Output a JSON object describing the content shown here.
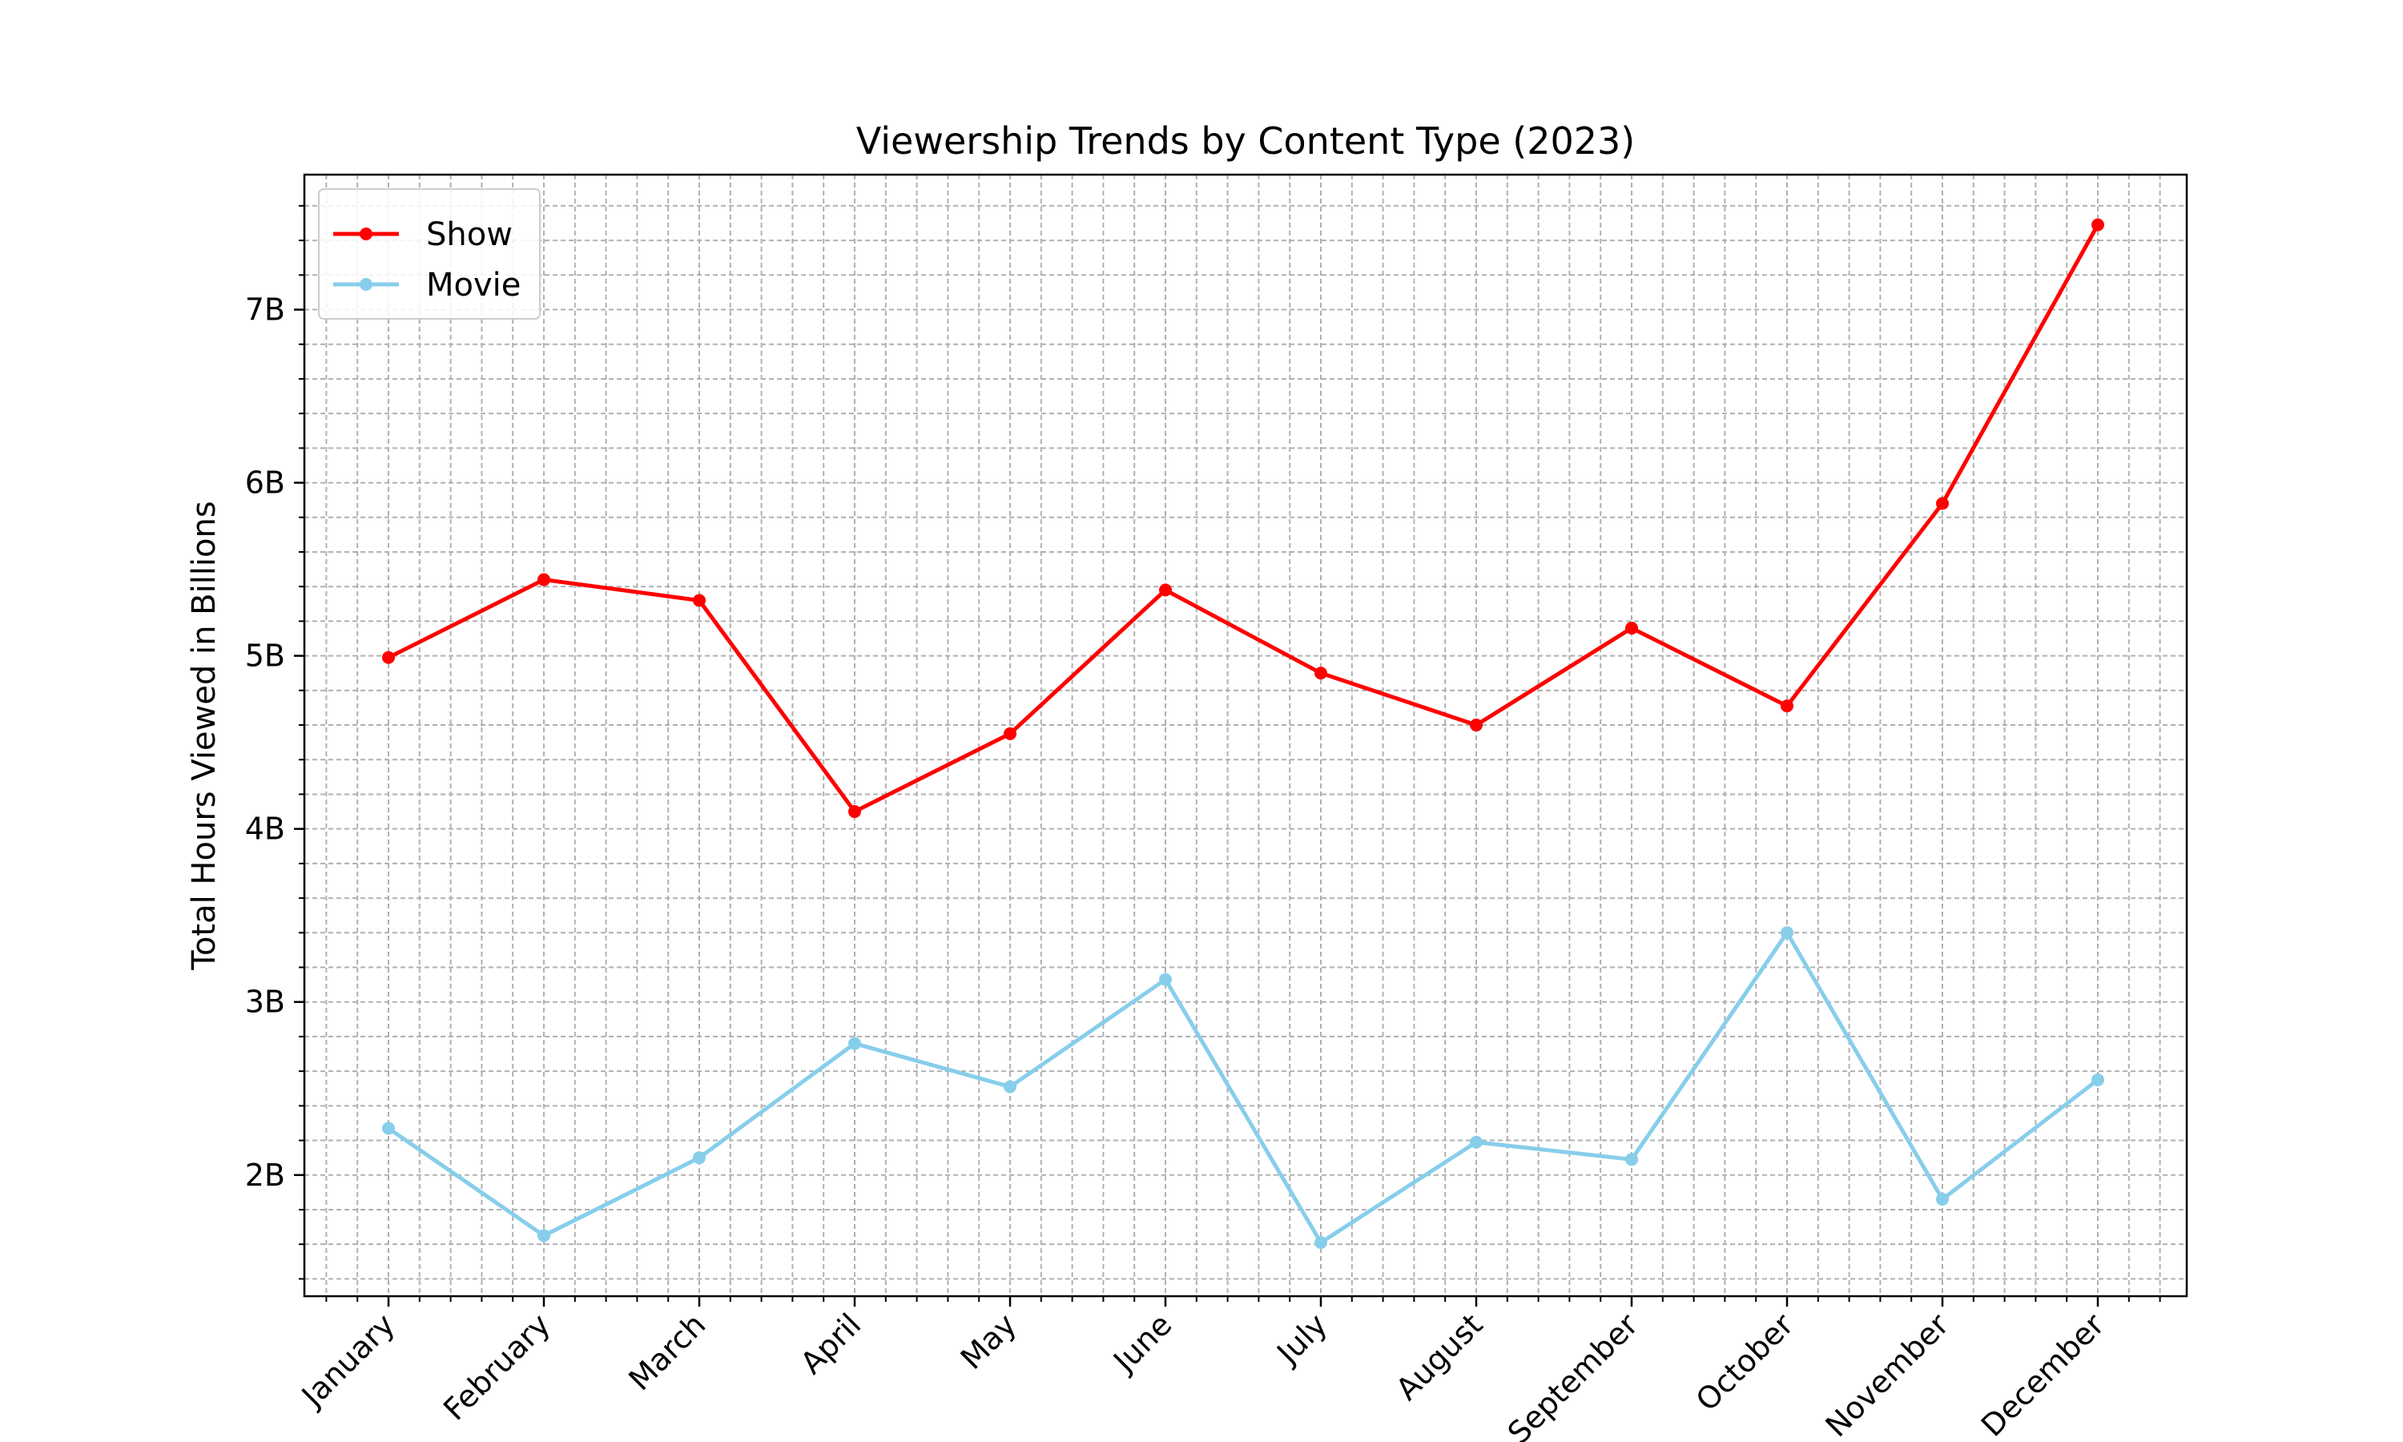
{
  "chart_data": {
    "type": "line",
    "title": "Viewership Trends by Content Type (2023)",
    "xlabel": "",
    "ylabel": "Total Hours Viewed in Billions",
    "categories": [
      "January",
      "February",
      "March",
      "April",
      "May",
      "June",
      "July",
      "August",
      "September",
      "October",
      "November",
      "December"
    ],
    "series": [
      {
        "name": "Show",
        "color": "#ff0000",
        "values": [
          4.99,
          5.44,
          5.32,
          4.1,
          4.55,
          5.38,
          4.9,
          4.6,
          5.16,
          4.71,
          5.88,
          7.49
        ]
      },
      {
        "name": "Movie",
        "color": "#87ceeb",
        "values": [
          2.27,
          1.65,
          2.1,
          2.76,
          2.51,
          3.13,
          1.61,
          2.19,
          2.09,
          3.4,
          1.86,
          2.55
        ]
      }
    ],
    "ylim": [
      1.3,
      7.78
    ],
    "yticks": [
      2,
      3,
      4,
      5,
      6,
      7
    ],
    "ytick_labels": [
      "2B",
      "3B",
      "4B",
      "5B",
      "6B",
      "7B"
    ],
    "grid": true,
    "legend": "top-left"
  }
}
